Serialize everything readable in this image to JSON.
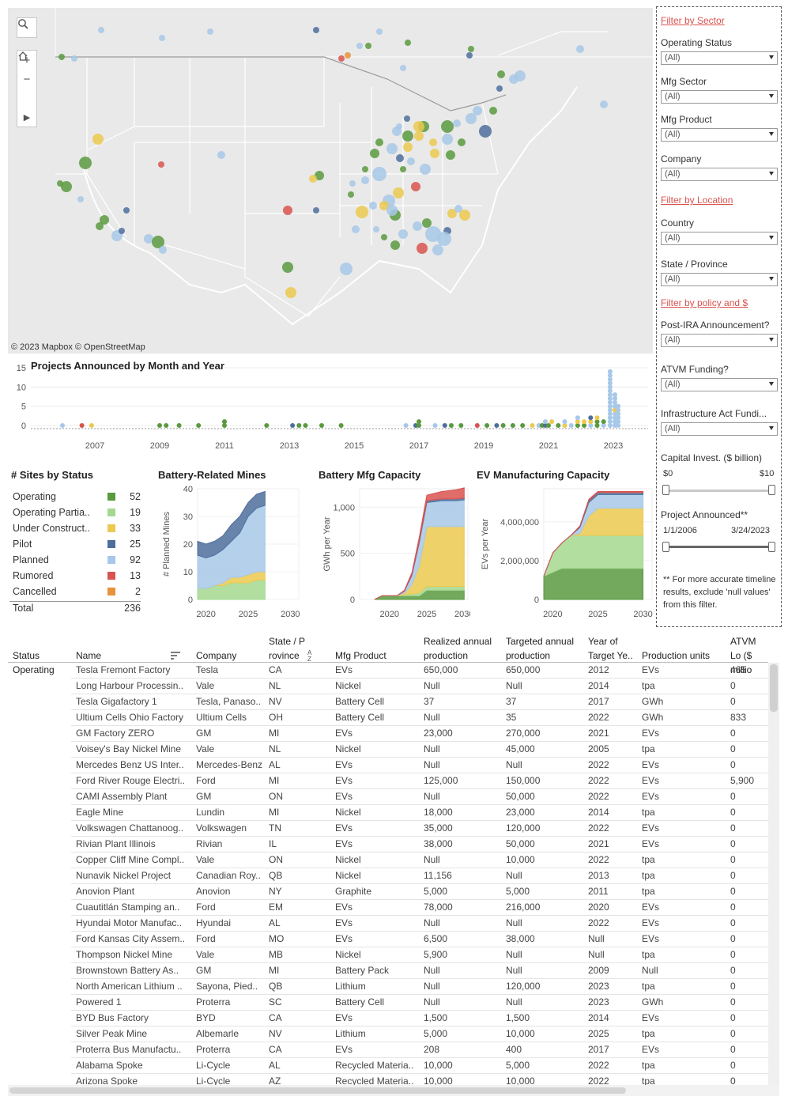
{
  "map": {
    "attribution": "© 2023 Mapbox  © OpenStreetMap",
    "controls": {
      "search": "search",
      "zoom_in": "+",
      "zoom_out": "−",
      "home": "home",
      "expand": "▶"
    }
  },
  "colors": {
    "Operating": "#5a9a3f",
    "Operating Partially": "#a5d88f",
    "Under Construction": "#ecc94f",
    "Pilot": "#4e6f9c",
    "Planned": "#a7c8e8",
    "Rumored": "#d9534f",
    "Cancelled": "#e8923a"
  },
  "timeline": {
    "title": "Projects Announced by Month and Year",
    "y_ticks": [
      "15",
      "10",
      "5",
      "0"
    ],
    "x_ticks": [
      "2007",
      "2009",
      "2011",
      "2013",
      "2015",
      "2017",
      "2019",
      "2021",
      "2023"
    ]
  },
  "status": {
    "title": "# Sites by Status",
    "rows": [
      {
        "label": "Operating",
        "count": "52",
        "color": "#5a9a3f"
      },
      {
        "label": "Operating Partia..",
        "count": "19",
        "color": "#a5d88f"
      },
      {
        "label": "Under Construct..",
        "count": "33",
        "color": "#ecc94f"
      },
      {
        "label": "Pilot",
        "count": "25",
        "color": "#4e6f9c"
      },
      {
        "label": "Planned",
        "count": "92",
        "color": "#a7c8e8"
      },
      {
        "label": "Rumored",
        "count": "13",
        "color": "#d9534f"
      },
      {
        "label": "Cancelled",
        "count": "2",
        "color": "#e8923a"
      }
    ],
    "total_label": "Total",
    "total": "236"
  },
  "chart_data": [
    {
      "type": "area",
      "title": "Battery-Related Mines",
      "ylabel": "# Planned Mines",
      "y_ticks": [
        "40",
        "30",
        "20",
        "10",
        "0"
      ],
      "x_ticks": [
        "2020",
        "2025",
        "2030"
      ],
      "ylim": [
        0,
        40
      ],
      "x": [
        2019,
        2020,
        2021,
        2022,
        2023,
        2024,
        2025,
        2026,
        2027
      ],
      "series": [
        {
          "color": "#a5d88f",
          "values": [
            4,
            4,
            5,
            5,
            6,
            6,
            6,
            7,
            7
          ]
        },
        {
          "color": "#ecc94f",
          "values": [
            0,
            0,
            0,
            1,
            2,
            2,
            3,
            3,
            3
          ]
        },
        {
          "color": "#a7c8e8",
          "values": [
            12,
            11,
            11,
            12,
            13,
            16,
            21,
            23,
            24
          ]
        },
        {
          "color": "#4e6f9c",
          "values": [
            5,
            5,
            5,
            5,
            6,
            6,
            5,
            5,
            5
          ]
        }
      ]
    },
    {
      "type": "area",
      "title": "Battery Mfg Capacity",
      "ylabel": "GWh per Year",
      "y_ticks": [
        "1,000",
        "500",
        "0"
      ],
      "x_ticks": [
        "2020",
        "2025",
        "2030"
      ],
      "ylim": [
        0,
        1200
      ],
      "x": [
        2018,
        2019,
        2020,
        2021,
        2022,
        2023,
        2024,
        2025,
        2026,
        2027,
        2028,
        2029,
        2030
      ],
      "series": [
        {
          "color": "#5a9a3f",
          "values": [
            0,
            40,
            40,
            40,
            40,
            40,
            40,
            100,
            100,
            100,
            100,
            100,
            100
          ]
        },
        {
          "color": "#a5d88f",
          "values": [
            0,
            0,
            0,
            0,
            10,
            20,
            30,
            40,
            40,
            40,
            40,
            40,
            40
          ]
        },
        {
          "color": "#ecc94f",
          "values": [
            0,
            0,
            0,
            0,
            20,
            100,
            300,
            650,
            650,
            650,
            650,
            650,
            650
          ]
        },
        {
          "color": "#a7c8e8",
          "values": [
            0,
            0,
            0,
            0,
            20,
            100,
            250,
            260,
            270,
            280,
            280,
            280,
            290
          ]
        },
        {
          "color": "#4e6f9c",
          "values": [
            0,
            0,
            0,
            0,
            5,
            10,
            20,
            20,
            20,
            20,
            20,
            20,
            20
          ]
        },
        {
          "color": "#d9534f",
          "values": [
            0,
            0,
            0,
            0,
            5,
            20,
            40,
            60,
            70,
            80,
            90,
            100,
            110
          ]
        }
      ]
    },
    {
      "type": "area",
      "title": "EV Manufacturing Capacity",
      "ylabel": "EVs per Year",
      "y_ticks": [
        "4,000,000",
        "2,000,000",
        "0"
      ],
      "x_ticks": [
        "2020",
        "2025",
        "2030"
      ],
      "ylim": [
        0,
        5700000
      ],
      "x": [
        2019,
        2020,
        2021,
        2022,
        2023,
        2024,
        2025,
        2026,
        2027,
        2028,
        2029,
        2030
      ],
      "series": [
        {
          "color": "#5a9a3f",
          "values": [
            1200000,
            1400000,
            1600000,
            1600000,
            1600000,
            1600000,
            1600000,
            1600000,
            1600000,
            1600000,
            1600000,
            1600000
          ]
        },
        {
          "color": "#a5d88f",
          "values": [
            0,
            1000000,
            1300000,
            1700000,
            1700000,
            1700000,
            1700000,
            1700000,
            1700000,
            1700000,
            1700000,
            1700000
          ]
        },
        {
          "color": "#ecc94f",
          "values": [
            0,
            0,
            0,
            0,
            100000,
            1000000,
            1400000,
            1400000,
            1400000,
            1400000,
            1400000,
            1400000
          ]
        },
        {
          "color": "#a7c8e8",
          "values": [
            0,
            0,
            0,
            0,
            300000,
            700000,
            700000,
            700000,
            700000,
            700000,
            700000,
            700000
          ]
        },
        {
          "color": "#4e6f9c",
          "values": [
            0,
            0,
            0,
            0,
            50000,
            100000,
            100000,
            100000,
            100000,
            100000,
            100000,
            100000
          ]
        },
        {
          "color": "#d9534f",
          "values": [
            0,
            0,
            0,
            0,
            30000,
            60000,
            60000,
            60000,
            60000,
            60000,
            60000,
            60000
          ]
        }
      ]
    }
  ],
  "filters": {
    "sector_header": "Filter by Sector",
    "location_header": "Filter by Location",
    "policy_header": "Filter by policy and $",
    "items": [
      {
        "label": "Operating Status",
        "value": "(All)"
      },
      {
        "label": "Mfg Sector",
        "value": "(All)"
      },
      {
        "label": "Mfg Product",
        "value": "(All)"
      },
      {
        "label": "Company",
        "value": "(All)"
      },
      {
        "label": "Country",
        "value": "(All)"
      },
      {
        "label": "State / Province",
        "value": "(All)"
      },
      {
        "label": "Post-IRA Announcement?",
        "value": "(All)"
      },
      {
        "label": "ATVM Funding?",
        "value": "(All)"
      },
      {
        "label": "Infrastructure Act Fundi...",
        "value": "(All)"
      }
    ],
    "capital": {
      "label": "Capital Invest. ($ billion)",
      "min": "$0",
      "max": "$10"
    },
    "announced": {
      "label": "Project Announced**",
      "min": "1/1/2006",
      "max": "3/24/2023"
    },
    "note": "** For more accurate timeline results, exclude 'null values' from this filter."
  },
  "table": {
    "headers": {
      "status": "Status",
      "name": "Name",
      "company": "Company",
      "state": "State / P rovince",
      "product": "Mfg Product",
      "realized": "Realized annual production",
      "targeted": "Targeted annual production",
      "year": "Year of Target Ye..",
      "units": "Production units",
      "atvm": "ATVM Lo ($ millio"
    },
    "status_group": "Operating",
    "rows": [
      [
        "Tesla Fremont Factory",
        "Tesla",
        "CA",
        "EVs",
        "650,000",
        "650,000",
        "2012",
        "EVs",
        "465"
      ],
      [
        "Long Harbour Processin..",
        "Vale",
        "NL",
        "Nickel",
        "Null",
        "Null",
        "2014",
        "tpa",
        "0"
      ],
      [
        "Tesla Gigafactory 1",
        "Tesla, Panaso..",
        "NV",
        "Battery Cell",
        "37",
        "37",
        "2017",
        "GWh",
        "0"
      ],
      [
        "Ultium Cells Ohio Factory",
        "Ultium Cells",
        "OH",
        "Battery Cell",
        "Null",
        "35",
        "2022",
        "GWh",
        "833"
      ],
      [
        "GM Factory ZERO",
        "GM",
        "MI",
        "EVs",
        "23,000",
        "270,000",
        "2021",
        "EVs",
        "0"
      ],
      [
        "Voisey's Bay Nickel Mine",
        "Vale",
        "NL",
        "Nickel",
        "Null",
        "45,000",
        "2005",
        "tpa",
        "0"
      ],
      [
        "Mercedes Benz US Inter..",
        "Mercedes-Benz",
        "AL",
        "EVs",
        "Null",
        "Null",
        "2022",
        "EVs",
        "0"
      ],
      [
        "Ford River Rouge Electri..",
        "Ford",
        "MI",
        "EVs",
        "125,000",
        "150,000",
        "2022",
        "EVs",
        "5,900"
      ],
      [
        "CAMI Assembly Plant",
        "GM",
        "ON",
        "EVs",
        "Null",
        "50,000",
        "2022",
        "EVs",
        "0"
      ],
      [
        "Eagle Mine",
        "Lundin",
        "MI",
        "Nickel",
        "18,000",
        "23,000",
        "2014",
        "tpa",
        "0"
      ],
      [
        "Volkswagen Chattanoog..",
        "Volkswagen",
        "TN",
        "EVs",
        "35,000",
        "120,000",
        "2022",
        "EVs",
        "0"
      ],
      [
        "Rivian Plant Illinois",
        "Rivian",
        "IL",
        "EVs",
        "38,000",
        "50,000",
        "2021",
        "EVs",
        "0"
      ],
      [
        "Copper Cliff Mine Compl..",
        "Vale",
        "ON",
        "Nickel",
        "Null",
        "10,000",
        "2022",
        "tpa",
        "0"
      ],
      [
        "Nunavik Nickel Project",
        "Canadian Roy..",
        "QB",
        "Nickel",
        "11,156",
        "Null",
        "2013",
        "tpa",
        "0"
      ],
      [
        "Anovion Plant",
        "Anovion",
        "NY",
        "Graphite",
        "5,000",
        "5,000",
        "2011",
        "tpa",
        "0"
      ],
      [
        "Cuautitlán Stamping an..",
        "Ford",
        "EM",
        "EVs",
        "78,000",
        "216,000",
        "2020",
        "EVs",
        "0"
      ],
      [
        "Hyundai Motor Manufac..",
        "Hyundai",
        "AL",
        "EVs",
        "Null",
        "Null",
        "2022",
        "EVs",
        "0"
      ],
      [
        "Ford Kansas City Assem..",
        "Ford",
        "MO",
        "EVs",
        "6,500",
        "38,000",
        "Null",
        "EVs",
        "0"
      ],
      [
        "Thompson Nickel Mine",
        "Vale",
        "MB",
        "Nickel",
        "5,900",
        "Null",
        "Null",
        "tpa",
        "0"
      ],
      [
        "Brownstown Battery As..",
        "GM",
        "MI",
        "Battery Pack",
        "Null",
        "Null",
        "2009",
        "Null",
        "0"
      ],
      [
        "North American Lithium ..",
        "Sayona, Pied..",
        "QB",
        "Lithium",
        "Null",
        "120,000",
        "2023",
        "tpa",
        "0"
      ],
      [
        "Powered 1",
        "Proterra",
        "SC",
        "Battery Cell",
        "Null",
        "Null",
        "2023",
        "GWh",
        "0"
      ],
      [
        "BYD Bus Factory",
        "BYD",
        "CA",
        "EVs",
        "1,500",
        "1,500",
        "2014",
        "EVs",
        "0"
      ],
      [
        "Silver Peak Mine",
        "Albemarle",
        "NV",
        "Lithium",
        "5,000",
        "10,000",
        "2025",
        "tpa",
        "0"
      ],
      [
        "Proterra Bus Manufactu..",
        "Proterra",
        "CA",
        "EVs",
        "208",
        "400",
        "2017",
        "EVs",
        "0"
      ],
      [
        "Alabama Spoke",
        "Li-Cycle",
        "AL",
        "Recycled Materia..",
        "10,000",
        "5,000",
        "2022",
        "tpa",
        "0"
      ],
      [
        "Arizona Spoke",
        "Li-Cycle",
        "AZ",
        "Recycled Materia..",
        "10,000",
        "10,000",
        "2022",
        "tpa",
        "0"
      ]
    ]
  }
}
